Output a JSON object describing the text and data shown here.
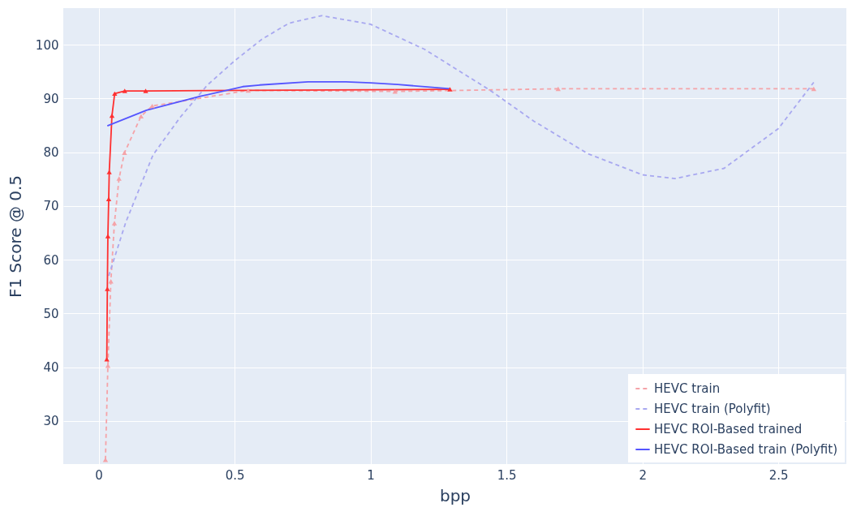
{
  "chart_data": {
    "type": "line",
    "xlabel": "bpp",
    "ylabel": "F1 Score @ 0.5",
    "xlim": [
      -0.13,
      2.75
    ],
    "ylim": [
      22,
      106.8
    ],
    "xticks": [
      0,
      0.5,
      1,
      1.5,
      2,
      2.5
    ],
    "yticks": [
      30,
      40,
      50,
      60,
      70,
      80,
      90,
      100
    ],
    "grid": true,
    "legend": "bottom right",
    "series": [
      {
        "name": "HEVC train",
        "color": "#f5a3a8",
        "marker": "triangle",
        "line_style": "dashed",
        "x": [
          0.025,
          0.034,
          0.045,
          0.058,
          0.075,
          0.095,
          0.156,
          0.197,
          0.55,
          1.09,
          1.69,
          2.63
        ],
        "values": [
          22.8,
          40.3,
          56.0,
          66.8,
          75.1,
          79.9,
          86.7,
          88.6,
          91.5,
          91.3,
          91.8,
          91.8
        ]
      },
      {
        "name": "HEVC train (Polyfit)",
        "color": "#a8a8f0",
        "marker": "none",
        "line_style": "dashed",
        "x": [
          0.037,
          0.1,
          0.2,
          0.3,
          0.4,
          0.5,
          0.6,
          0.7,
          0.82,
          1.0,
          1.2,
          1.44,
          1.6,
          1.8,
          2.0,
          2.12,
          2.3,
          2.5,
          2.63
        ],
        "values": [
          57,
          67,
          79.5,
          86.5,
          92.5,
          97,
          101,
          104,
          105.4,
          103.8,
          99.1,
          91.5,
          85.8,
          79.7,
          75.8,
          75.1,
          77,
          84.4,
          93
        ]
      },
      {
        "name": "HEVC ROI-Based trained",
        "color": "#ff3030",
        "marker": "triangle",
        "line_style": "solid",
        "x": [
          0.03,
          0.032,
          0.034,
          0.037,
          0.039,
          0.049,
          0.059,
          0.096,
          0.173,
          1.292
        ],
        "values": [
          41.5,
          54.6,
          64.4,
          71.3,
          76.3,
          86.8,
          90.9,
          91.4,
          91.4,
          91.7
        ]
      },
      {
        "name": "HEVC ROI-Based train (Polyfit)",
        "color": "#5555ff",
        "marker": "none",
        "line_style": "solid",
        "x": [
          0.032,
          0.176,
          0.374,
          0.53,
          0.592,
          0.77,
          0.91,
          1.0,
          1.1,
          1.292
        ],
        "values": [
          84.9,
          87.8,
          90.4,
          92.2,
          92.5,
          93.1,
          93.1,
          92.9,
          92.6,
          91.8
        ]
      }
    ]
  }
}
